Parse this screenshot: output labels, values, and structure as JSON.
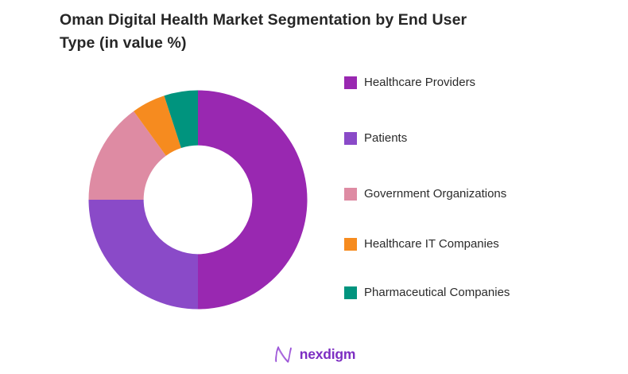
{
  "header": {
    "title_line1": "Oman Digital Health Market Segmentation by End User",
    "title_line2": "Type (in value %)"
  },
  "chart_data": {
    "type": "pie",
    "subtype": "donut",
    "title": "Oman Digital Health Market Segmentation by End User Type (in value %)",
    "labels": [
      "Healthcare Providers",
      "Patients",
      "Government Organizations",
      "Healthcare IT Companies",
      "Pharmaceutical Companies"
    ],
    "values": [
      50,
      25,
      15,
      5,
      5
    ],
    "unit": "percent",
    "colors": [
      "#9928b1",
      "#8a4ac8",
      "#de8ba3",
      "#f68b1f",
      "#00947e"
    ],
    "start_angle_deg": 0,
    "direction": "clockwise",
    "inner_radius_ratio": 0.497,
    "legend_position": "right",
    "data_labels_shown": false
  },
  "footer": {
    "logo_text": "nexdigm",
    "logo_color": "#7d2ec2"
  }
}
